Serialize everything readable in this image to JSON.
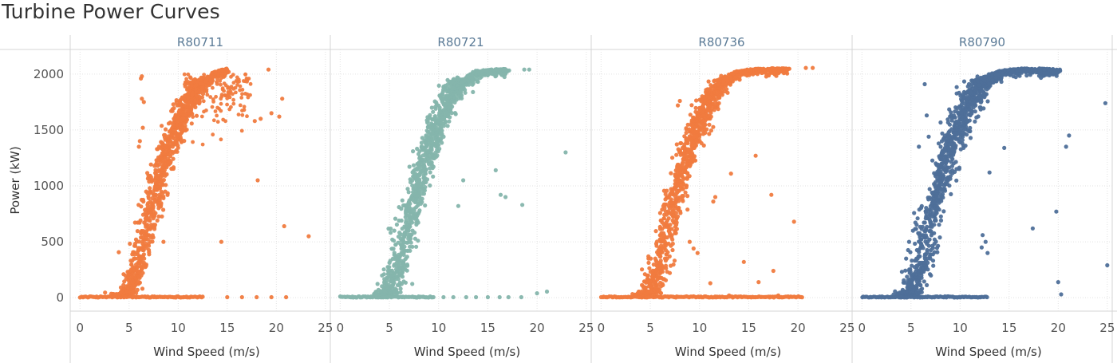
{
  "title": "Turbine Power Curves",
  "chart_data": {
    "type": "scatter",
    "title": "Turbine Power Curves",
    "xlabel": "Wind Speed (m/s)",
    "ylabel": "Power (kW)",
    "xlim": [
      -1,
      25.5
    ],
    "ylim": [
      -120,
      2220
    ],
    "x_ticks": [
      0,
      5,
      10,
      15,
      20,
      25
    ],
    "y_ticks": [
      0,
      500,
      1000,
      1500,
      2000
    ],
    "grid": true,
    "legend": "none",
    "panels": [
      {
        "name": "R80711",
        "color": "#f07b3f",
        "curve": {
          "points": [
            [
              0,
              0
            ],
            [
              4,
              0
            ],
            [
              5,
              60
            ],
            [
              6,
              300
            ],
            [
              7,
              720
            ],
            [
              8,
              1050
            ],
            [
              9,
              1330
            ],
            [
              10,
              1560
            ],
            [
              11,
              1750
            ],
            [
              12,
              1890
            ],
            [
              13,
              1980
            ],
            [
              14,
              2030
            ],
            [
              15,
              2050
            ]
          ],
          "spread": 0.55
        },
        "extra_band": {
          "x": [
            10.5,
            17.5
          ],
          "y": [
            1550,
            2000
          ]
        },
        "zero_line": [
          0,
          12.5
        ],
        "outliers": [
          [
            6.2,
            1960
          ],
          [
            6.3,
            1980
          ],
          [
            6.3,
            1780
          ],
          [
            6.5,
            1750
          ],
          [
            6.4,
            1520
          ],
          [
            6.1,
            1400
          ],
          [
            6.0,
            1350
          ],
          [
            8.5,
            500
          ],
          [
            14.4,
            500
          ],
          [
            17.8,
            1580
          ],
          [
            18.1,
            1050
          ],
          [
            18.4,
            1600
          ],
          [
            19.2,
            2040
          ],
          [
            19.5,
            1650
          ],
          [
            20.3,
            1620
          ],
          [
            20.6,
            1780
          ],
          [
            20.8,
            640
          ],
          [
            23.3,
            550
          ],
          [
            15.0,
            5
          ],
          [
            16.5,
            5
          ],
          [
            18.0,
            5
          ],
          [
            19.5,
            5
          ],
          [
            21.0,
            5
          ]
        ]
      },
      {
        "name": "R80721",
        "color": "#85b5ac",
        "curve": {
          "points": [
            [
              0,
              0
            ],
            [
              4,
              0
            ],
            [
              5,
              60
            ],
            [
              6,
              300
            ],
            [
              7,
              700
            ],
            [
              8,
              1030
            ],
            [
              9,
              1310
            ],
            [
              10,
              1550
            ],
            [
              11,
              1760
            ],
            [
              12,
              1900
            ],
            [
              13,
              1990
            ],
            [
              14,
              2030
            ],
            [
              16,
              2045
            ],
            [
              17,
              2050
            ]
          ],
          "spread": 0.6
        },
        "extra_band": null,
        "zero_line": [
          0,
          9.5
        ],
        "outliers": [
          [
            5.3,
            520
          ],
          [
            5.5,
            600
          ],
          [
            12.0,
            820
          ],
          [
            12.5,
            1050
          ],
          [
            15.8,
            1140
          ],
          [
            16.3,
            920
          ],
          [
            16.8,
            900
          ],
          [
            18.5,
            830
          ],
          [
            18.7,
            2040
          ],
          [
            19.2,
            2040
          ],
          [
            22.9,
            1300
          ],
          [
            10.5,
            5
          ],
          [
            11.5,
            5
          ],
          [
            12.8,
            5
          ],
          [
            13.8,
            5
          ],
          [
            15.0,
            5
          ],
          [
            16.2,
            5
          ],
          [
            17.1,
            5
          ],
          [
            18.4,
            5
          ],
          [
            20.0,
            40
          ],
          [
            21.0,
            55
          ]
        ]
      },
      {
        "name": "R80736",
        "color": "#f07b3f",
        "curve": {
          "points": [
            [
              0,
              0
            ],
            [
              4,
              0
            ],
            [
              5,
              60
            ],
            [
              6,
              300
            ],
            [
              7,
              720
            ],
            [
              8,
              1060
            ],
            [
              9,
              1340
            ],
            [
              10,
              1570
            ],
            [
              11,
              1760
            ],
            [
              12,
              1900
            ],
            [
              13,
              1990
            ],
            [
              14,
              2030
            ],
            [
              16,
              2050
            ],
            [
              19,
              2055
            ]
          ],
          "spread": 0.55
        },
        "extra_band": null,
        "zero_line": [
          0,
          20.5
        ],
        "outliers": [
          [
            5.0,
            150
          ],
          [
            7.8,
            1720
          ],
          [
            8.0,
            1760
          ],
          [
            9.0,
            500
          ],
          [
            9.4,
            440
          ],
          [
            9.8,
            400
          ],
          [
            11.1,
            130
          ],
          [
            11.4,
            860
          ],
          [
            11.6,
            900
          ],
          [
            13.2,
            1110
          ],
          [
            13.0,
            20
          ],
          [
            14.5,
            320
          ],
          [
            15.7,
            1270
          ],
          [
            16.0,
            140
          ],
          [
            17.3,
            920
          ],
          [
            17.5,
            240
          ],
          [
            18.0,
            20
          ],
          [
            19.6,
            680
          ],
          [
            20.8,
            2055
          ],
          [
            21.5,
            2055
          ]
        ]
      },
      {
        "name": "R80790",
        "color": "#4e6f99",
        "curve": {
          "points": [
            [
              0,
              0
            ],
            [
              4,
              0
            ],
            [
              5,
              60
            ],
            [
              6,
              300
            ],
            [
              7,
              720
            ],
            [
              8,
              1060
            ],
            [
              9,
              1340
            ],
            [
              10,
              1560
            ],
            [
              11,
              1760
            ],
            [
              12,
              1900
            ],
            [
              13,
              1990
            ],
            [
              14,
              2030
            ],
            [
              16,
              2050
            ],
            [
              19,
              2050
            ],
            [
              20,
              2040
            ]
          ],
          "spread": 0.65
        },
        "extra_band": null,
        "zero_line": [
          0,
          12.8
        ],
        "outliers": [
          [
            6.4,
            1910
          ],
          [
            6.6,
            1630
          ],
          [
            6.8,
            1440
          ],
          [
            5.8,
            1350
          ],
          [
            4.5,
            350
          ],
          [
            4.8,
            500
          ],
          [
            5.2,
            600
          ],
          [
            12.2,
            450
          ],
          [
            12.3,
            560
          ],
          [
            12.6,
            500
          ],
          [
            12.8,
            400
          ],
          [
            13.0,
            1120
          ],
          [
            14.5,
            1340
          ],
          [
            17.4,
            620
          ],
          [
            19.8,
            770
          ],
          [
            20.0,
            140
          ],
          [
            20.3,
            30
          ],
          [
            20.8,
            1350
          ],
          [
            21.1,
            1450
          ],
          [
            25.0,
            290
          ],
          [
            24.8,
            1740
          ]
        ]
      }
    ]
  }
}
